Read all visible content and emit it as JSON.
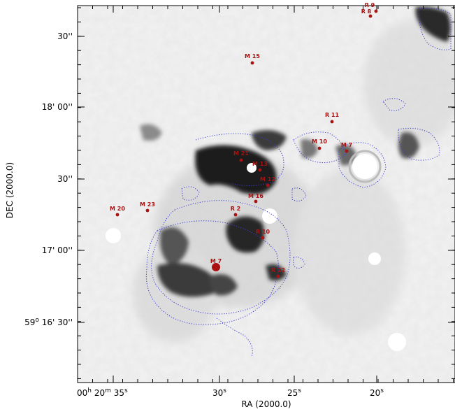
{
  "axes": {
    "xlabel": "RA (2000.0)",
    "ylabel": "DEC (2000.0)",
    "x_ticks": [
      {
        "label_main": "00",
        "sup1": "h",
        "mid": " 20",
        "sup2": "m",
        "end": " 35",
        "sup3": "s"
      },
      {
        "label_main": "30",
        "sup3": "s"
      },
      {
        "label_main": "25",
        "sup3": "s"
      },
      {
        "label_main": "20",
        "sup3": "s"
      }
    ],
    "y_ticks": [
      {
        "label_main": "30''"
      },
      {
        "label_main": "18' 00''"
      },
      {
        "label_main": "30''"
      },
      {
        "label_main": "17' 00''"
      },
      {
        "label_main": "59",
        "sup": "o",
        "end": " 16' 30''"
      }
    ]
  },
  "sources": [
    {
      "label": "R 9"
    },
    {
      "label": "R 8"
    },
    {
      "label": "M 15"
    },
    {
      "label": "R 11"
    },
    {
      "label": "M 10"
    },
    {
      "label": "M 7"
    },
    {
      "label": "M 21"
    },
    {
      "label": "M 13"
    },
    {
      "label": "M 12"
    },
    {
      "label": "M 16"
    },
    {
      "label": "M 20"
    },
    {
      "label": "M 23"
    },
    {
      "label": "R 2"
    },
    {
      "label": "R 10"
    },
    {
      "label": "M 7"
    },
    {
      "label": "R 12"
    }
  ],
  "colors": {
    "marker": "#aa1111",
    "contour": "#3a3ad0",
    "background": "#f0f0f0"
  }
}
